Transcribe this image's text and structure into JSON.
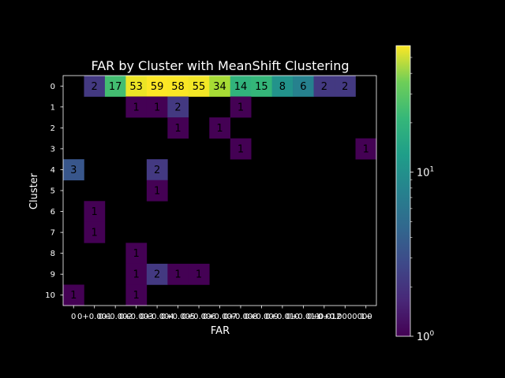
{
  "chart_data": {
    "type": "heatmap",
    "title": "FAR by Cluster with MeanShift Clustering",
    "xlabel": "FAR",
    "ylabel": "Cluster",
    "x_tick_labels": [
      "0",
      "0+0.001",
      "0+0.002",
      "0+0.003",
      "0+0.004",
      "0+0.005",
      "0+0.006",
      "0+0.007",
      "0+0.008",
      "0+0.009",
      "0+0.010",
      "0+0.011",
      "0+0.012",
      "0+0.0000000",
      "1+"
    ],
    "y_tick_labels": [
      "0",
      "1",
      "2",
      "3",
      "4",
      "5",
      "6",
      "7",
      "8",
      "9",
      "10"
    ],
    "cells": [
      {
        "row": 0,
        "col": 1,
        "value": 2
      },
      {
        "row": 0,
        "col": 2,
        "value": 17
      },
      {
        "row": 0,
        "col": 3,
        "value": 53
      },
      {
        "row": 0,
        "col": 4,
        "value": 59
      },
      {
        "row": 0,
        "col": 5,
        "value": 58
      },
      {
        "row": 0,
        "col": 6,
        "value": 55
      },
      {
        "row": 0,
        "col": 7,
        "value": 34
      },
      {
        "row": 0,
        "col": 8,
        "value": 14
      },
      {
        "row": 0,
        "col": 9,
        "value": 15
      },
      {
        "row": 0,
        "col": 10,
        "value": 8
      },
      {
        "row": 0,
        "col": 11,
        "value": 6
      },
      {
        "row": 0,
        "col": 12,
        "value": 2
      },
      {
        "row": 0,
        "col": 13,
        "value": 2
      },
      {
        "row": 1,
        "col": 3,
        "value": 1
      },
      {
        "row": 1,
        "col": 4,
        "value": 1
      },
      {
        "row": 1,
        "col": 5,
        "value": 2
      },
      {
        "row": 1,
        "col": 8,
        "value": 1
      },
      {
        "row": 2,
        "col": 5,
        "value": 1
      },
      {
        "row": 2,
        "col": 7,
        "value": 1
      },
      {
        "row": 3,
        "col": 8,
        "value": 1
      },
      {
        "row": 3,
        "col": 14,
        "value": 1
      },
      {
        "row": 4,
        "col": 0,
        "value": 3
      },
      {
        "row": 4,
        "col": 4,
        "value": 2
      },
      {
        "row": 5,
        "col": 4,
        "value": 1
      },
      {
        "row": 6,
        "col": 1,
        "value": 1
      },
      {
        "row": 7,
        "col": 1,
        "value": 1
      },
      {
        "row": 8,
        "col": 3,
        "value": 1
      },
      {
        "row": 9,
        "col": 3,
        "value": 1
      },
      {
        "row": 9,
        "col": 4,
        "value": 2
      },
      {
        "row": 9,
        "col": 5,
        "value": 1
      },
      {
        "row": 9,
        "col": 6,
        "value": 1
      },
      {
        "row": 10,
        "col": 0,
        "value": 1
      },
      {
        "row": 10,
        "col": 3,
        "value": 1
      }
    ],
    "colorbar": {
      "scale": "log",
      "colormap": "viridis",
      "vmin": 1,
      "vmax": 59,
      "tick_labels": [
        "10^0",
        "10^1"
      ]
    },
    "grid": false,
    "background": "#000000",
    "text_color": "#ffffff",
    "cell_text_color": "#000000"
  }
}
